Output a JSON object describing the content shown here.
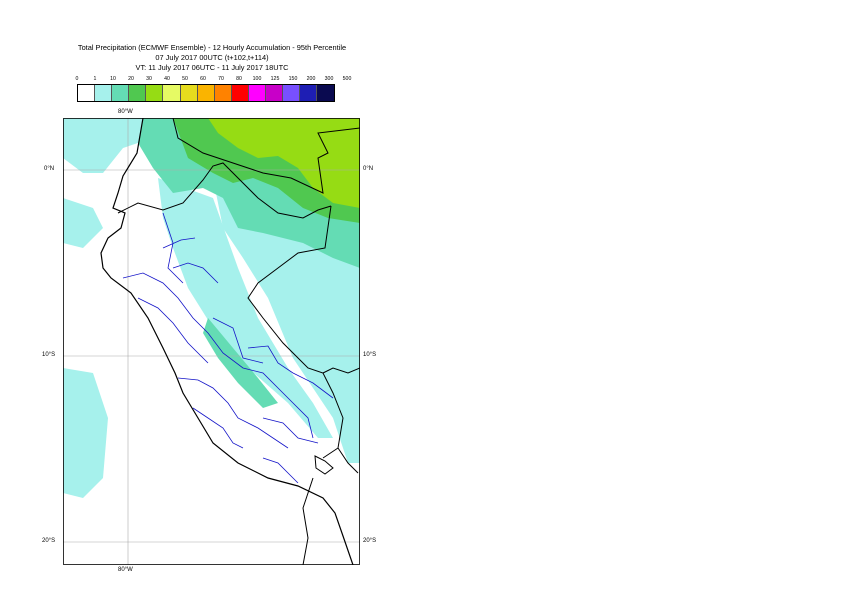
{
  "title": {
    "line1": "Total Precipitation (ECMWF Ensemble) - 12 Hourly Accumulation - 95th Percentile",
    "line2": "07 July 2017 00UTC (t+102,t+114)",
    "line3": "VT: 11 July 2017 06UTC - 11 July 2017 18UTC"
  },
  "legend": {
    "thresholds": [
      "0",
      "1",
      "10",
      "20",
      "30",
      "40",
      "50",
      "60",
      "70",
      "80",
      "100",
      "125",
      "150",
      "200",
      "300",
      "500"
    ],
    "colors": [
      "#ffffff",
      "#a6f1ec",
      "#64dcb4",
      "#50c850",
      "#96dc14",
      "#e6fa64",
      "#e6dc1e",
      "#fab400",
      "#ff8200",
      "#ff0000",
      "#ff00ff",
      "#c800c8",
      "#7850ff",
      "#1e1eb4",
      "#0a0a50"
    ]
  },
  "axes": {
    "lon_top": "80°W",
    "lon_bottom": "80°W",
    "lat_labels": [
      "0°N",
      "10°S",
      "20°S"
    ]
  },
  "map": {
    "land_color": "#ffffff",
    "border_color": "#000000",
    "region_border_color": "#1414c8",
    "grid_color": "#aaaaaa"
  }
}
